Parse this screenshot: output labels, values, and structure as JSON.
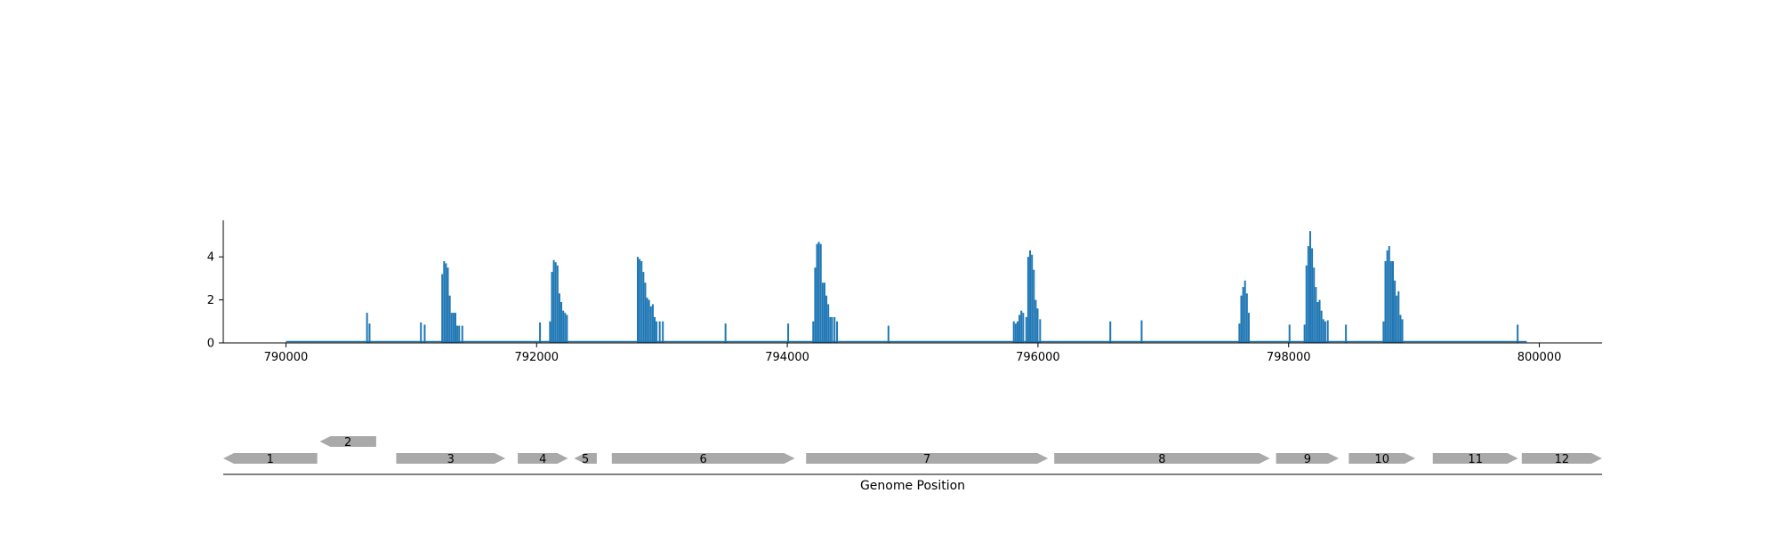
{
  "chart_data": [
    {
      "type": "bar",
      "title": "",
      "xlabel": "",
      "ylabel": "",
      "xlim": [
        789500,
        800500
      ],
      "ylim": [
        0,
        5.7
      ],
      "xticks": [
        790000,
        792000,
        794000,
        796000,
        798000,
        800000
      ],
      "xtick_labels": [
        "790000",
        "792000",
        "794000",
        "796000",
        "798000",
        "800000"
      ],
      "yticks": [
        0,
        2,
        4
      ],
      "ytick_labels": [
        "0",
        "2",
        "4"
      ],
      "grid": false,
      "baseline": {
        "x_start": 790000,
        "x_end": 799900,
        "value": 0.05
      },
      "bar_width": 14,
      "color": "#1f77b4",
      "bars": [
        [
          790640,
          1.4
        ],
        [
          790660,
          0.9
        ],
        [
          791070,
          0.95
        ],
        [
          791100,
          0.85
        ],
        [
          791240,
          3.2
        ],
        [
          791255,
          3.8
        ],
        [
          791270,
          3.7
        ],
        [
          791285,
          3.5
        ],
        [
          791300,
          2.2
        ],
        [
          791315,
          1.4
        ],
        [
          791330,
          1.4
        ],
        [
          791345,
          1.4
        ],
        [
          791360,
          0.8
        ],
        [
          791375,
          0.8
        ],
        [
          791400,
          0.8
        ],
        [
          792020,
          0.95
        ],
        [
          792100,
          1.0
        ],
        [
          792115,
          3.3
        ],
        [
          792130,
          3.85
        ],
        [
          792145,
          3.75
        ],
        [
          792160,
          3.6
        ],
        [
          792175,
          2.3
        ],
        [
          792190,
          1.9
        ],
        [
          792205,
          1.5
        ],
        [
          792220,
          1.4
        ],
        [
          792235,
          1.3
        ],
        [
          792800,
          4.0
        ],
        [
          792815,
          3.9
        ],
        [
          792830,
          3.8
        ],
        [
          792845,
          3.3
        ],
        [
          792860,
          2.8
        ],
        [
          792875,
          2.1
        ],
        [
          792890,
          2.0
        ],
        [
          792905,
          1.7
        ],
        [
          792920,
          1.8
        ],
        [
          792935,
          1.2
        ],
        [
          792950,
          1.0
        ],
        [
          792975,
          1.0
        ],
        [
          793000,
          1.0
        ],
        [
          793500,
          0.9
        ],
        [
          794000,
          0.9
        ],
        [
          794200,
          1.0
        ],
        [
          794215,
          3.5
        ],
        [
          794230,
          4.6
        ],
        [
          794245,
          4.7
        ],
        [
          794260,
          4.6
        ],
        [
          794275,
          2.8
        ],
        [
          794290,
          2.8
        ],
        [
          794305,
          2.2
        ],
        [
          794320,
          1.8
        ],
        [
          794335,
          1.2
        ],
        [
          794350,
          1.2
        ],
        [
          794370,
          1.2
        ],
        [
          794390,
          1.0
        ],
        [
          794800,
          0.8
        ],
        [
          795800,
          1.0
        ],
        [
          795815,
          0.9
        ],
        [
          795830,
          1.0
        ],
        [
          795845,
          1.3
        ],
        [
          795860,
          1.5
        ],
        [
          795875,
          1.4
        ],
        [
          795900,
          1.2
        ],
        [
          795915,
          4.0
        ],
        [
          795930,
          4.3
        ],
        [
          795945,
          4.1
        ],
        [
          795960,
          3.4
        ],
        [
          795975,
          2.0
        ],
        [
          795990,
          1.6
        ],
        [
          796010,
          1.1
        ],
        [
          796570,
          1.0
        ],
        [
          796820,
          1.05
        ],
        [
          797600,
          0.9
        ],
        [
          797615,
          2.2
        ],
        [
          797630,
          2.6
        ],
        [
          797645,
          2.9
        ],
        [
          797660,
          2.3
        ],
        [
          797675,
          1.4
        ],
        [
          798000,
          0.85
        ],
        [
          798120,
          0.85
        ],
        [
          798135,
          3.6
        ],
        [
          798150,
          4.5
        ],
        [
          798165,
          5.2
        ],
        [
          798180,
          4.4
        ],
        [
          798195,
          3.5
        ],
        [
          798210,
          2.6
        ],
        [
          798225,
          1.9
        ],
        [
          798240,
          2.0
        ],
        [
          798255,
          1.5
        ],
        [
          798270,
          1.1
        ],
        [
          798285,
          1.0
        ],
        [
          798305,
          1.05
        ],
        [
          798450,
          0.85
        ],
        [
          798750,
          1.0
        ],
        [
          798765,
          3.8
        ],
        [
          798780,
          4.3
        ],
        [
          798795,
          4.5
        ],
        [
          798810,
          3.8
        ],
        [
          798825,
          3.8
        ],
        [
          798840,
          2.9
        ],
        [
          798855,
          2.2
        ],
        [
          798870,
          2.4
        ],
        [
          798885,
          1.3
        ],
        [
          798900,
          1.1
        ],
        [
          799820,
          0.85
        ]
      ]
    },
    {
      "type": "gene_map",
      "xlabel": "Genome Position",
      "xlim": [
        789500,
        800500
      ],
      "color": "#a9a9a9",
      "genes": [
        {
          "label": "1",
          "start": 789500,
          "end": 790250,
          "strand": "-",
          "row": 0
        },
        {
          "label": "2",
          "start": 790270,
          "end": 790720,
          "strand": "-",
          "row": 1
        },
        {
          "label": "3",
          "start": 790880,
          "end": 791750,
          "strand": "+",
          "row": 0
        },
        {
          "label": "4",
          "start": 791850,
          "end": 792250,
          "strand": "+",
          "row": 0
        },
        {
          "label": "5",
          "start": 792300,
          "end": 792480,
          "strand": "-",
          "row": 0
        },
        {
          "label": "6",
          "start": 792600,
          "end": 794060,
          "strand": "+",
          "row": 0
        },
        {
          "label": "7",
          "start": 794150,
          "end": 796080,
          "strand": "+",
          "row": 0
        },
        {
          "label": "8",
          "start": 796130,
          "end": 797850,
          "strand": "+",
          "row": 0
        },
        {
          "label": "9",
          "start": 797900,
          "end": 798400,
          "strand": "+",
          "row": 0
        },
        {
          "label": "10",
          "start": 798480,
          "end": 799010,
          "strand": "+",
          "row": 0
        },
        {
          "label": "11",
          "start": 799150,
          "end": 799830,
          "strand": "+",
          "row": 0
        },
        {
          "label": "12",
          "start": 799860,
          "end": 800500,
          "strand": "+",
          "row": 0
        }
      ]
    }
  ]
}
